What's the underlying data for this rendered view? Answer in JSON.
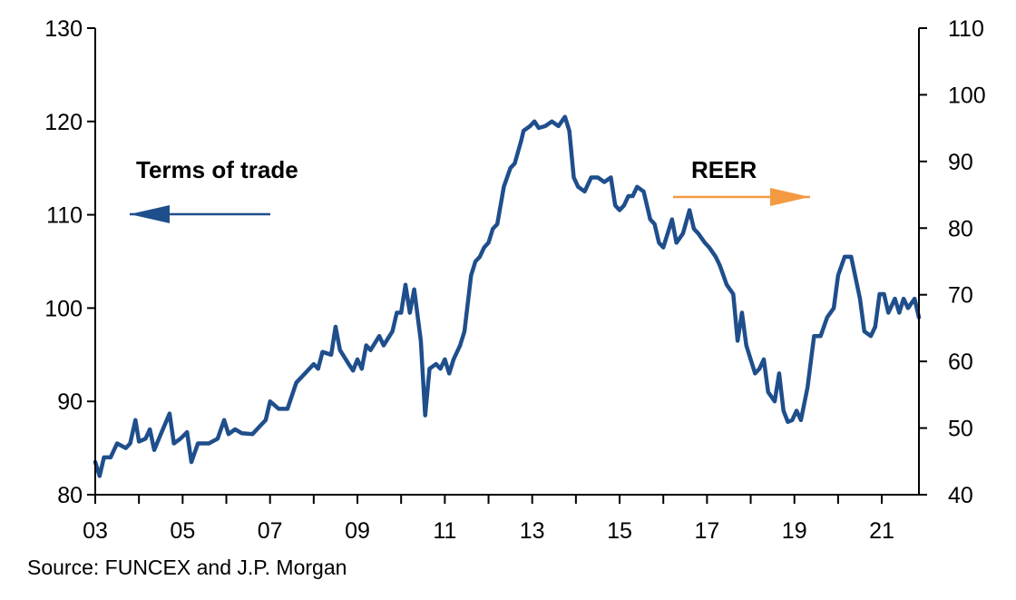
{
  "chart_data": {
    "type": "line",
    "title": "",
    "source": "Source: FUNCEX and J.P. Morgan",
    "x_tick_labels": [
      "03",
      "05",
      "07",
      "09",
      "11",
      "13",
      "15",
      "17",
      "19",
      "21"
    ],
    "x_tick_years": [
      2003,
      2005,
      2007,
      2009,
      2011,
      2013,
      2015,
      2017,
      2019,
      2021
    ],
    "xlim": [
      2003.0,
      2021.85
    ],
    "left_axis": {
      "ylim": [
        80,
        130
      ],
      "ticks": [
        80,
        90,
        100,
        110,
        120,
        130
      ]
    },
    "right_axis": {
      "ylim": [
        40,
        110
      ],
      "ticks": [
        40,
        50,
        60,
        70,
        80,
        90,
        100,
        110
      ]
    },
    "annotations": [
      {
        "text": "Terms of trade",
        "arrow": "left",
        "series": "Terms of trade"
      },
      {
        "text": "REER",
        "arrow": "right",
        "series": "REER"
      }
    ],
    "series": [
      {
        "name": "Terms of trade",
        "axis": "left",
        "color": "#1f4e8c",
        "points": [
          [
            2003.0,
            83.5
          ],
          [
            2003.1,
            82.0
          ],
          [
            2003.2,
            84.0
          ],
          [
            2003.35,
            84.0
          ],
          [
            2003.5,
            85.5
          ],
          [
            2003.7,
            85.0
          ],
          [
            2003.8,
            85.5
          ],
          [
            2003.92,
            88.0
          ],
          [
            2004.0,
            85.7
          ],
          [
            2004.15,
            86.0
          ],
          [
            2004.25,
            87.0
          ],
          [
            2004.35,
            84.8
          ],
          [
            2004.5,
            86.5
          ],
          [
            2004.7,
            88.7
          ],
          [
            2004.8,
            85.5
          ],
          [
            2004.95,
            86.0
          ],
          [
            2005.1,
            86.7
          ],
          [
            2005.2,
            83.5
          ],
          [
            2005.35,
            85.5
          ],
          [
            2005.6,
            85.5
          ],
          [
            2005.8,
            86.0
          ],
          [
            2005.95,
            88.0
          ],
          [
            2006.05,
            86.5
          ],
          [
            2006.2,
            87.0
          ],
          [
            2006.35,
            86.6
          ],
          [
            2006.6,
            86.5
          ],
          [
            2006.8,
            87.5
          ],
          [
            2006.9,
            88.0
          ],
          [
            2007.0,
            90.0
          ],
          [
            2007.2,
            89.2
          ],
          [
            2007.4,
            89.2
          ],
          [
            2007.6,
            92.0
          ],
          [
            2007.8,
            93.0
          ],
          [
            2008.0,
            94.0
          ],
          [
            2008.1,
            93.5
          ],
          [
            2008.2,
            95.3
          ],
          [
            2008.4,
            95.0
          ],
          [
            2008.5,
            98.0
          ],
          [
            2008.6,
            95.5
          ],
          [
            2008.8,
            94.0
          ],
          [
            2008.9,
            93.3
          ],
          [
            2009.0,
            94.5
          ],
          [
            2009.1,
            93.5
          ],
          [
            2009.2,
            96.0
          ],
          [
            2009.3,
            95.5
          ],
          [
            2009.5,
            97.0
          ],
          [
            2009.6,
            96.0
          ],
          [
            2009.8,
            97.5
          ],
          [
            2009.9,
            99.5
          ],
          [
            2010.0,
            99.5
          ],
          [
            2010.1,
            102.5
          ],
          [
            2010.2,
            99.5
          ],
          [
            2010.3,
            102.0
          ],
          [
            2010.45,
            96.5
          ],
          [
            2010.55,
            88.5
          ],
          [
            2010.65,
            93.5
          ],
          [
            2010.8,
            94.0
          ],
          [
            2010.9,
            93.5
          ],
          [
            2011.0,
            94.5
          ],
          [
            2011.1,
            93.0
          ],
          [
            2011.2,
            94.5
          ],
          [
            2011.35,
            96.0
          ],
          [
            2011.45,
            97.5
          ],
          [
            2011.6,
            103.5
          ],
          [
            2011.7,
            105.0
          ],
          [
            2011.8,
            105.5
          ],
          [
            2011.9,
            106.5
          ],
          [
            2012.0,
            107.0
          ],
          [
            2012.1,
            108.5
          ],
          [
            2012.2,
            109.0
          ],
          [
            2012.35,
            113.0
          ],
          [
            2012.5,
            115.0
          ],
          [
            2012.6,
            115.5
          ],
          [
            2012.75,
            118.0
          ],
          [
            2012.8,
            119.0
          ],
          [
            2012.95,
            119.5
          ],
          [
            2013.05,
            120.0
          ],
          [
            2013.15,
            119.3
          ],
          [
            2013.3,
            119.5
          ],
          [
            2013.45,
            120.0
          ],
          [
            2013.6,
            119.5
          ],
          [
            2013.75,
            120.5
          ],
          [
            2013.85,
            119.0
          ],
          [
            2013.95,
            114.0
          ],
          [
            2014.05,
            113.0
          ],
          [
            2014.2,
            112.5
          ],
          [
            2014.35,
            114.0
          ],
          [
            2014.5,
            114.0
          ],
          [
            2014.65,
            113.5
          ],
          [
            2014.8,
            114.0
          ],
          [
            2014.9,
            111.0
          ],
          [
            2015.0,
            110.5
          ],
          [
            2015.1,
            111.0
          ],
          [
            2015.2,
            112.0
          ],
          [
            2015.3,
            112.0
          ],
          [
            2015.4,
            113.0
          ],
          [
            2015.55,
            112.5
          ],
          [
            2015.7,
            109.5
          ],
          [
            2015.8,
            109.0
          ],
          [
            2015.9,
            107.0
          ],
          [
            2016.0,
            106.5
          ],
          [
            2016.1,
            108.0
          ],
          [
            2016.2,
            109.5
          ],
          [
            2016.3,
            107.0
          ],
          [
            2016.45,
            108.0
          ],
          [
            2016.6,
            110.5
          ],
          [
            2016.7,
            108.5
          ],
          [
            2016.8,
            108.0
          ],
          [
            2016.95,
            107.0
          ],
          [
            2017.05,
            106.5
          ],
          [
            2017.2,
            105.5
          ],
          [
            2017.3,
            104.5
          ],
          [
            2017.45,
            102.5
          ],
          [
            2017.6,
            101.5
          ],
          [
            2017.7,
            96.5
          ],
          [
            2017.8,
            99.5
          ],
          [
            2017.9,
            96.0
          ],
          [
            2018.0,
            94.5
          ],
          [
            2018.1,
            93.0
          ],
          [
            2018.2,
            93.5
          ],
          [
            2018.3,
            94.5
          ],
          [
            2018.4,
            91.0
          ],
          [
            2018.55,
            90.0
          ],
          [
            2018.65,
            93.0
          ],
          [
            2018.75,
            89.0
          ],
          [
            2018.85,
            87.8
          ],
          [
            2018.95,
            88.0
          ],
          [
            2019.05,
            89.0
          ],
          [
            2019.15,
            88.0
          ],
          [
            2019.3,
            91.5
          ],
          [
            2019.45,
            97.0
          ],
          [
            2019.6,
            97.0
          ],
          [
            2019.75,
            99.0
          ],
          [
            2019.9,
            100.0
          ],
          [
            2020.0,
            103.5
          ],
          [
            2020.15,
            105.5
          ],
          [
            2020.3,
            105.5
          ],
          [
            2020.5,
            101.0
          ],
          [
            2020.6,
            97.5
          ],
          [
            2020.75,
            97.0
          ],
          [
            2020.85,
            98.0
          ],
          [
            2020.95,
            101.5
          ],
          [
            2021.05,
            101.5
          ],
          [
            2021.15,
            99.5
          ],
          [
            2021.3,
            101.0
          ],
          [
            2021.4,
            99.5
          ],
          [
            2021.5,
            101.0
          ],
          [
            2021.6,
            100.0
          ],
          [
            2021.75,
            101.0
          ],
          [
            2021.85,
            99.0
          ]
        ]
      }
    ]
  }
}
